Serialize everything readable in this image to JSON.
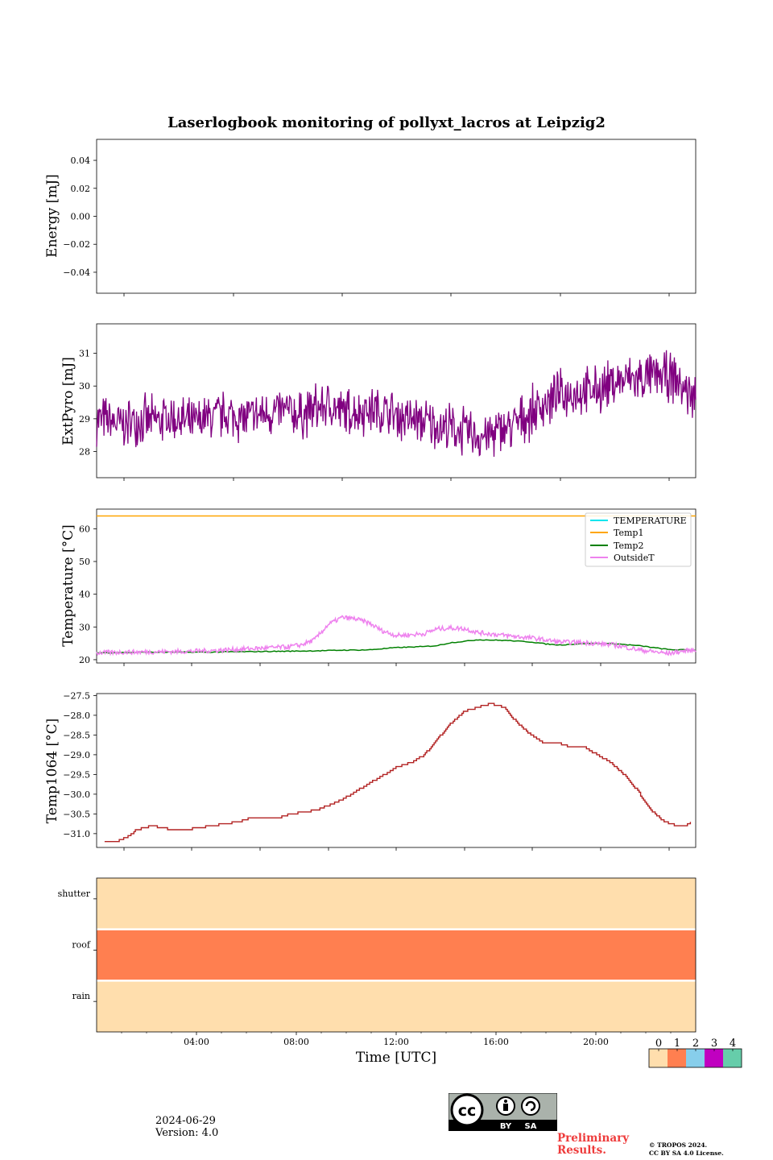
{
  "title": "Laserlogbook monitoring of pollyxt_lacros at Leipzig2",
  "footer": {
    "date": "2024-06-29",
    "version": "Version: 4.0",
    "preliminary": [
      "Preliminary",
      "Results."
    ],
    "copyright": [
      "© TROPOS 2024.",
      "CC BY SA 4.0 License."
    ],
    "license_badge": {
      "cc": "cc",
      "by": "BY",
      "sa": "SA"
    }
  },
  "colors": {
    "extpyro": "#800080",
    "temperature": "#00e5ee",
    "temp1": "#ffa500",
    "temp2": "#008000",
    "outsideT": "#ee82ee",
    "temp1064": "#b22222",
    "status_0": "#ffdead",
    "status_1": "#ff7f50",
    "status_2": "#87ceeb",
    "status_3": "#c000c0",
    "status_4": "#66cdaa"
  },
  "chart_data": [
    {
      "type": "line",
      "name": "energy",
      "ylabel": "Energy [mJ]",
      "xlim": [
        1.1,
        22.8
      ],
      "ylim": [
        -0.055,
        0.055
      ],
      "yticks": [
        0.04,
        0.02,
        0.0,
        -0.02,
        -0.04
      ],
      "ytick_labels": [
        "0.04",
        "0.02",
        "0.00",
        "−0.02",
        "−0.04"
      ],
      "series": []
    },
    {
      "type": "line",
      "name": "extpyro",
      "ylabel": "ExtPyro [mJ]",
      "xlim": [
        0.0,
        22.0
      ],
      "ylim": [
        27.2,
        31.9
      ],
      "yticks": [
        31,
        30,
        29,
        28
      ],
      "ytick_labels": [
        "31",
        "30",
        "29",
        "28"
      ],
      "series": [
        {
          "x": [
            0.0,
            0.5,
            1.0,
            1.5,
            2.0,
            2.5,
            3.0,
            3.5,
            4.0,
            4.5,
            5.0,
            5.5,
            6.0,
            6.5,
            7.0,
            7.5,
            8.0,
            8.5,
            9.0,
            9.5,
            10.0,
            10.5,
            11.0,
            11.5,
            12.0,
            12.5,
            13.0,
            13.5,
            14.0,
            14.5,
            15.0,
            15.5,
            16.0,
            16.5,
            17.0,
            17.5,
            18.0,
            18.5,
            19.0,
            19.5,
            20.0,
            20.5,
            21.0,
            21.5,
            22.0
          ],
          "y": [
            29.0,
            28.9,
            28.8,
            29.0,
            28.9,
            29.0,
            29.0,
            28.8,
            29.0,
            29.1,
            29.1,
            29.0,
            29.1,
            29.2,
            29.2,
            29.1,
            29.3,
            29.4,
            29.2,
            29.2,
            29.3,
            29.2,
            29.1,
            29.0,
            28.9,
            28.8,
            28.7,
            28.6,
            28.5,
            28.5,
            28.7,
            28.9,
            29.2,
            29.5,
            29.7,
            29.8,
            29.8,
            29.9,
            30.1,
            30.2,
            30.2,
            30.3,
            30.3,
            30.0,
            29.6
          ],
          "spread": 0.9
        }
      ]
    },
    {
      "type": "line",
      "name": "temperature",
      "ylabel": "Temperature [°C]",
      "xlim": [
        0.0,
        22.0
      ],
      "ylim": [
        19.0,
        66.0
      ],
      "yticks": [
        60,
        50,
        40,
        30,
        20
      ],
      "ytick_labels": [
        "60",
        "50",
        "40",
        "30",
        "20"
      ],
      "legend": {
        "position": "top-right",
        "entries": [
          "TEMPERATURE",
          "Temp1",
          "Temp2",
          "OutsideT"
        ]
      },
      "series": [
        {
          "name": "TEMPERATURE",
          "x": [],
          "y": []
        },
        {
          "name": "Temp1",
          "x": [
            0.0,
            22.0
          ],
          "y": [
            63.9,
            63.9
          ]
        },
        {
          "name": "Temp2",
          "x": [
            0.0,
            1.0,
            2.0,
            3.0,
            4.0,
            5.0,
            6.0,
            7.0,
            8.0,
            9.0,
            10.0,
            11.0,
            12.0,
            12.5,
            13.0,
            13.5,
            14.0,
            15.0,
            16.0,
            16.5,
            17.0,
            18.0,
            19.0,
            20.0,
            21.0,
            22.0
          ],
          "y": [
            22.1,
            22.2,
            22.3,
            22.3,
            22.3,
            22.4,
            22.5,
            22.6,
            22.7,
            22.9,
            23.0,
            23.7,
            24.0,
            24.3,
            25.2,
            25.6,
            26.1,
            25.9,
            25.4,
            24.8,
            24.5,
            25.0,
            24.9,
            24.2,
            23.1,
            22.9
          ]
        },
        {
          "name": "OutsideT",
          "x": [
            0.0,
            1.0,
            2.0,
            3.0,
            4.0,
            5.0,
            6.0,
            7.0,
            7.5,
            8.0,
            8.5,
            9.0,
            9.5,
            10.0,
            10.5,
            11.0,
            11.5,
            12.0,
            12.5,
            13.0,
            13.5,
            14.0,
            15.0,
            16.0,
            17.0,
            18.0,
            19.0,
            20.0,
            21.0,
            21.5,
            22.0
          ],
          "y": [
            22.1,
            22.3,
            22.4,
            22.5,
            22.7,
            23.1,
            23.5,
            23.9,
            24.5,
            26.1,
            30.7,
            32.9,
            32.5,
            31.2,
            28.8,
            27.4,
            27.6,
            27.9,
            29.4,
            29.7,
            29.5,
            28.3,
            27.4,
            26.6,
            25.4,
            25.2,
            24.5,
            22.9,
            21.9,
            22.6,
            23.0
          ],
          "spread": 1.4
        }
      ]
    },
    {
      "type": "line",
      "name": "temp1064",
      "ylabel": "Temp1064 [°C]",
      "xlim": [
        -0.3,
        22.2
      ],
      "ylim": [
        -31.35,
        -27.45
      ],
      "yticks": [
        -27.5,
        -28.0,
        -28.5,
        -29.0,
        -29.5,
        -30.0,
        -30.5,
        -31.0
      ],
      "ytick_labels": [
        "−27.5",
        "−28.0",
        "−28.5",
        "−29.0",
        "−29.5",
        "−30.0",
        "−30.5",
        "−31.0"
      ],
      "series": [
        {
          "x": [
            0.0,
            0.4,
            0.8,
            1.2,
            1.8,
            2.5,
            3.0,
            4.0,
            5.0,
            5.5,
            6.0,
            6.5,
            7.0,
            8.0,
            9.0,
            10.0,
            10.5,
            11.0,
            11.5,
            12.0,
            12.5,
            13.0,
            13.5,
            14.0,
            14.5,
            15.0,
            15.5,
            16.0,
            16.5,
            17.0,
            17.5,
            18.0,
            18.5,
            19.0,
            19.5,
            20.0,
            20.5,
            21.0,
            21.5,
            21.8,
            22.0
          ],
          "y": [
            -31.2,
            -31.2,
            -31.1,
            -30.9,
            -30.8,
            -30.9,
            -30.9,
            -30.8,
            -30.7,
            -30.6,
            -30.6,
            -30.6,
            -30.5,
            -30.4,
            -30.1,
            -29.7,
            -29.5,
            -29.3,
            -29.2,
            -29.0,
            -28.6,
            -28.2,
            -27.9,
            -27.8,
            -27.7,
            -27.8,
            -28.2,
            -28.5,
            -28.7,
            -28.7,
            -28.8,
            -28.8,
            -29.0,
            -29.2,
            -29.5,
            -29.9,
            -30.4,
            -30.7,
            -30.8,
            -30.8,
            -30.7
          ]
        }
      ]
    },
    {
      "type": "heatmap",
      "name": "status",
      "xlabel": "Time [UTC]",
      "xlim": [
        0.0,
        24.0
      ],
      "xticks": [
        4,
        8,
        12,
        16,
        20
      ],
      "xtick_labels": [
        "04:00",
        "08:00",
        "12:00",
        "16:00",
        "20:00"
      ],
      "rows": [
        "shutter",
        "roof",
        "rain"
      ],
      "values": [
        0,
        1,
        0
      ],
      "colorbar": {
        "ticks": [
          "0",
          "1",
          "2",
          "3",
          "4"
        ]
      }
    }
  ]
}
